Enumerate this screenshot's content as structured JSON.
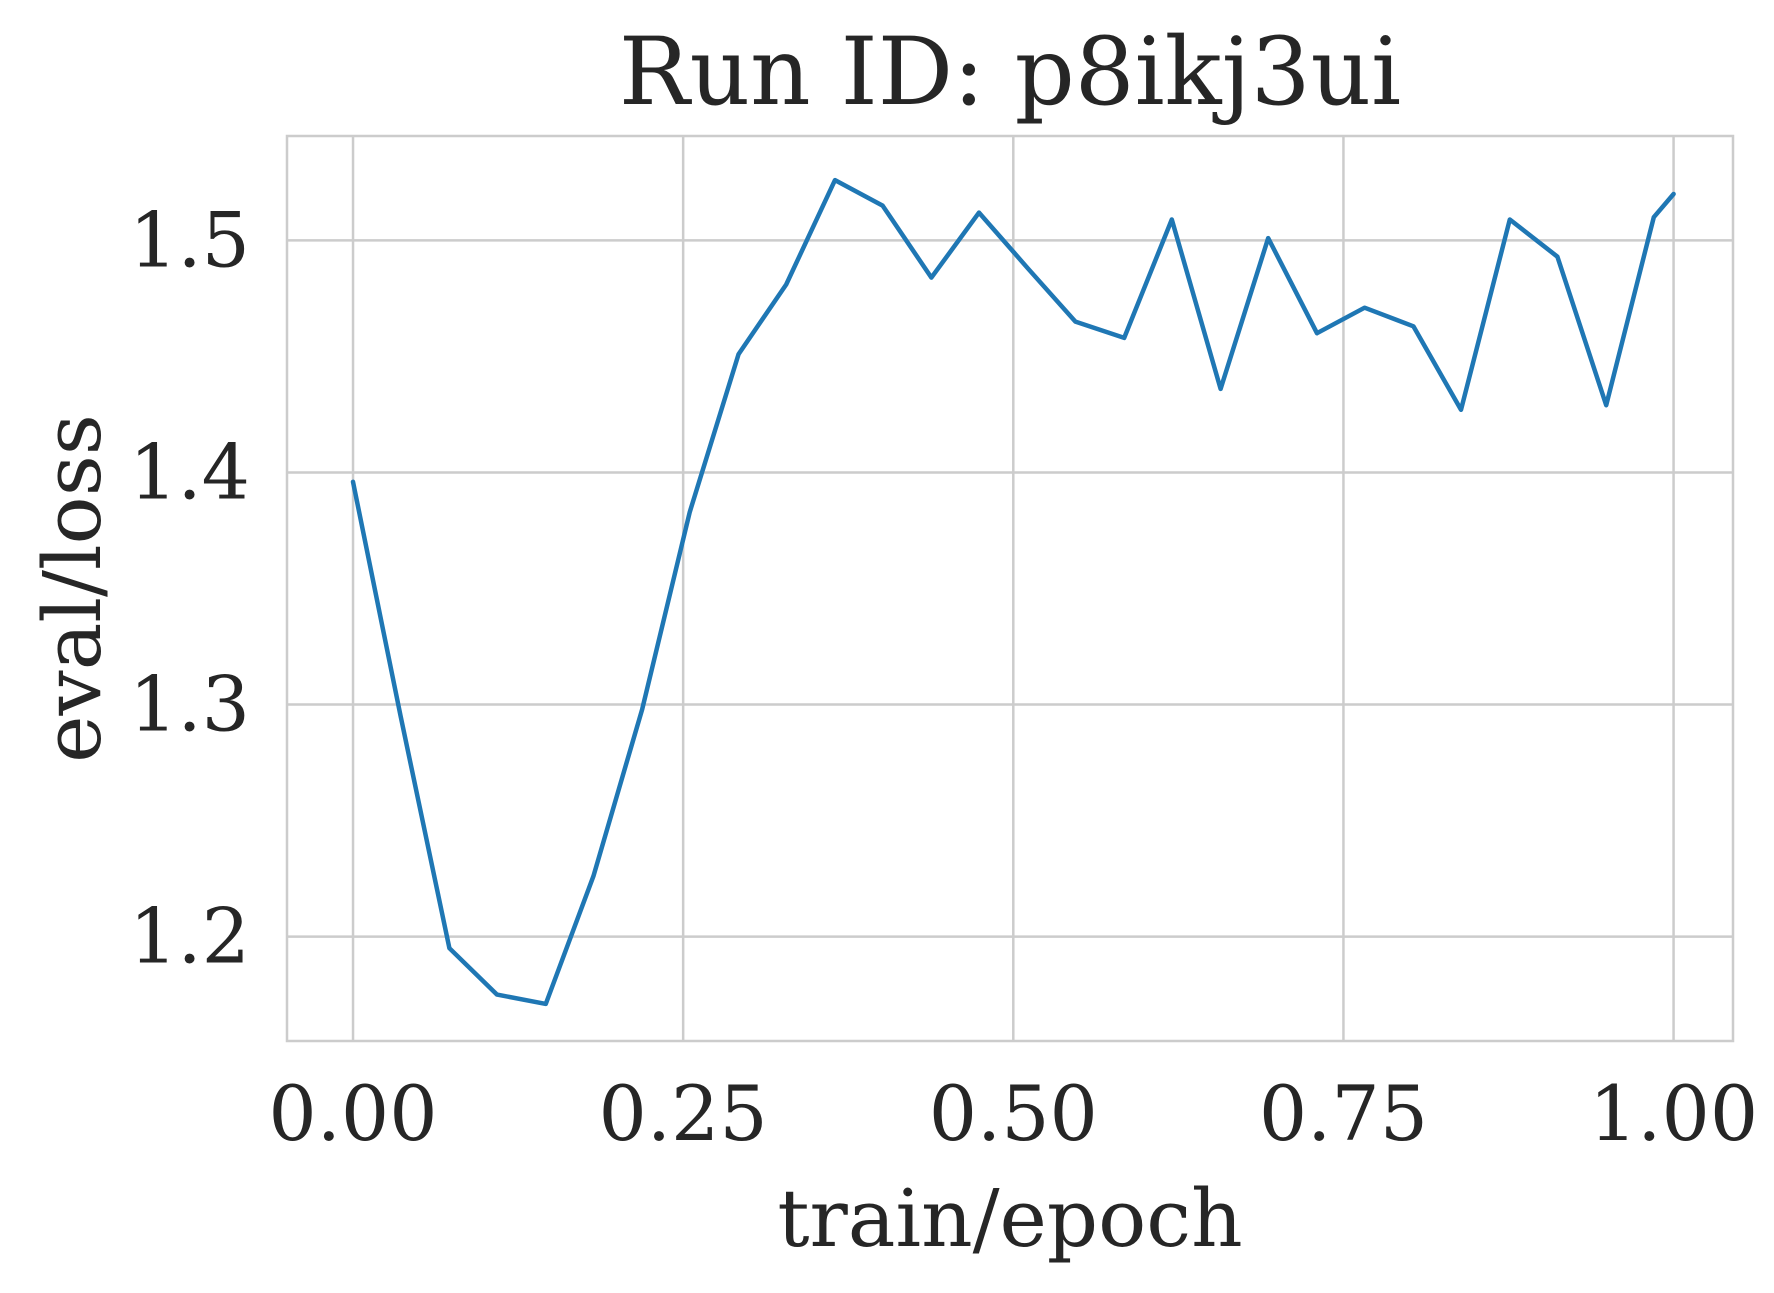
{
  "chart_data": {
    "type": "line",
    "title": "Run ID: p8ikj3ui",
    "xlabel": "train/epoch",
    "ylabel": "eval/loss",
    "xlim": [
      -0.05,
      1.045
    ],
    "ylim": [
      1.155,
      1.545
    ],
    "x_ticks": [
      0.0,
      0.25,
      0.5,
      0.75,
      1.0
    ],
    "x_tick_labels": [
      "0.00",
      "0.25",
      "0.50",
      "0.75",
      "1.00"
    ],
    "y_ticks": [
      1.2,
      1.3,
      1.4,
      1.5
    ],
    "y_tick_labels": [
      "1.2",
      "1.3",
      "1.4",
      "1.5"
    ],
    "grid": true,
    "series": [
      {
        "color": "#1f77b4",
        "x": [
          0.0,
          0.036,
          0.073,
          0.109,
          0.146,
          0.182,
          0.219,
          0.255,
          0.292,
          0.328,
          0.365,
          0.401,
          0.438,
          0.474,
          0.511,
          0.547,
          0.584,
          0.62,
          0.657,
          0.693,
          0.73,
          0.766,
          0.803,
          0.839,
          0.876,
          0.912,
          0.949,
          0.985,
          1.0
        ],
        "y": [
          1.396,
          1.295,
          1.195,
          1.175,
          1.171,
          1.226,
          1.298,
          1.383,
          1.451,
          1.481,
          1.526,
          1.515,
          1.484,
          1.512,
          1.488,
          1.465,
          1.458,
          1.509,
          1.436,
          1.501,
          1.46,
          1.471,
          1.463,
          1.427,
          1.509,
          1.493,
          1.429,
          1.51,
          1.52
        ]
      }
    ]
  }
}
